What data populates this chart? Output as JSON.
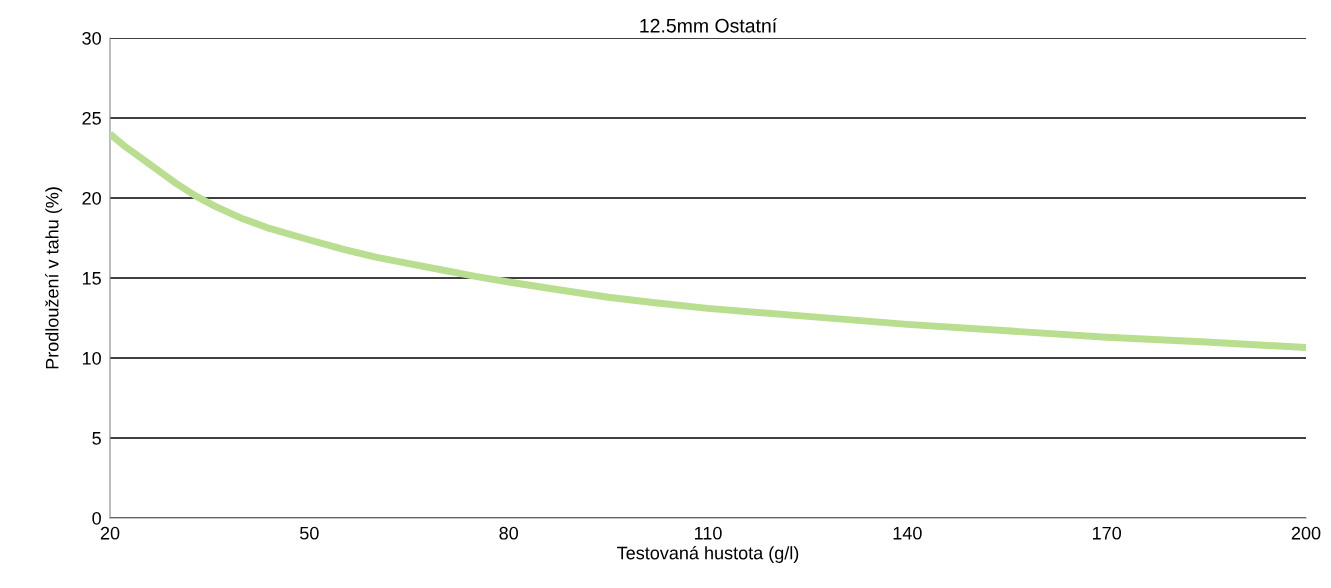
{
  "chart_data": {
    "type": "line",
    "title": "12.5mm Ostatní",
    "xlabel": "Testovaná hustota (g/l)",
    "ylabel": "Prodloužení v tahu (%)",
    "x": [
      20,
      22,
      24,
      26,
      28,
      30,
      33,
      36,
      40,
      44,
      49,
      55,
      60,
      65,
      70,
      75,
      80,
      87,
      95,
      102,
      110,
      125,
      140,
      155,
      170,
      185,
      200
    ],
    "series": [
      {
        "color": "#b9de8f",
        "values": [
          24.0,
          23.3,
          22.7,
          22.1,
          21.5,
          20.9,
          20.1,
          19.45,
          18.7,
          18.1,
          17.5,
          16.8,
          16.3,
          15.9,
          15.5,
          15.1,
          14.75,
          14.3,
          13.8,
          13.45,
          13.1,
          12.6,
          12.1,
          11.7,
          11.3,
          11.0,
          10.65
        ]
      }
    ],
    "xlim": [
      20,
      200
    ],
    "xticks": [
      20,
      50,
      80,
      110,
      140,
      170,
      200
    ],
    "ylim": [
      0,
      30
    ],
    "yticks": [
      0,
      5,
      10,
      15,
      20,
      25,
      30
    ],
    "grid": "y",
    "marker": "none",
    "line_style": "solid"
  }
}
